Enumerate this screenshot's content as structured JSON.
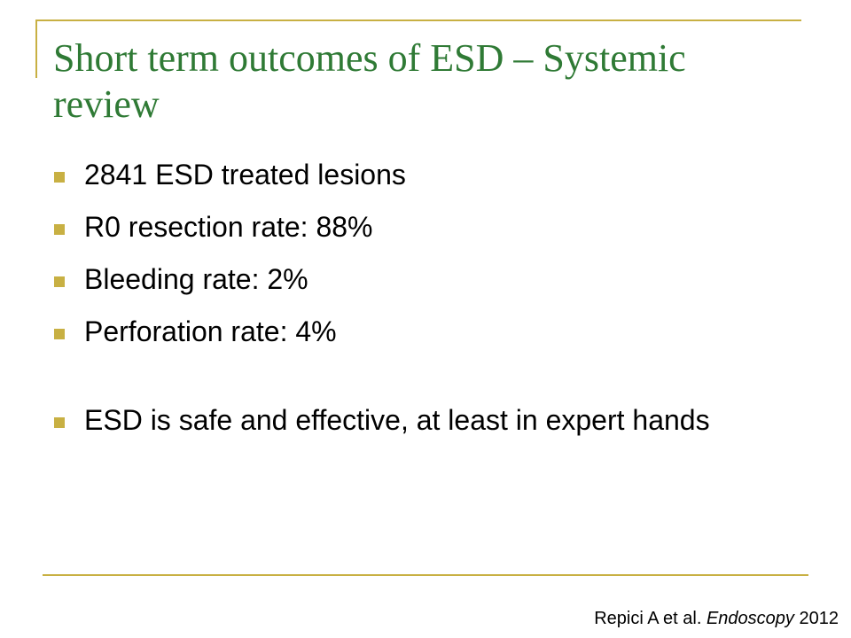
{
  "slide": {
    "title": "Short term outcomes of ESD – Systemic review",
    "bullets": [
      "2841 ESD treated lesions",
      "R0 resection rate: 88%",
      "Bleeding rate: 2%",
      "Perforation rate: 4%",
      "ESD is safe and effective, at least in expert hands"
    ],
    "citation": {
      "authors": "Repici A et al.",
      "journal": "Endoscopy",
      "year": "2012"
    }
  },
  "colors": {
    "title": "#2f7a35",
    "accent": "#c8b043",
    "text": "#000000",
    "background": "#ffffff"
  },
  "icons": {
    "bullet_marker": "square-bullet-icon"
  }
}
